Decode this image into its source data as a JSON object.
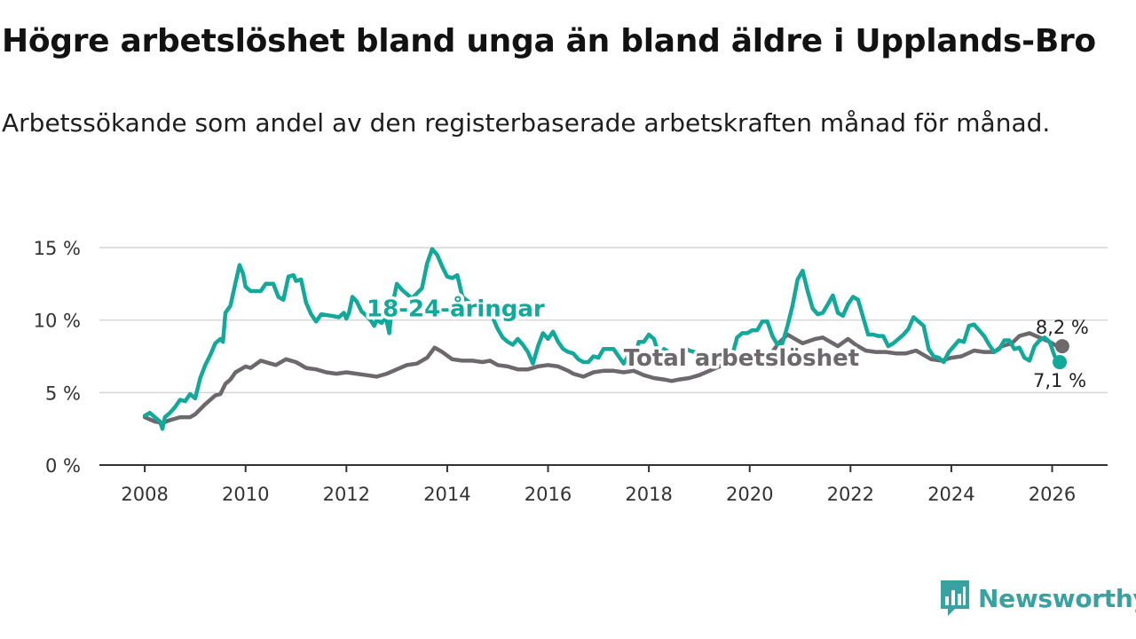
{
  "title": "Högre arbetslöshet bland unga än bland äldre i Upplands-Bro",
  "subtitle": "Arbetssökande som andel av den registerbaserade arbetskraften månad för månad.",
  "brand": {
    "name": "Newsworthy",
    "color": "#3aa1a1"
  },
  "chart_data": {
    "type": "line",
    "title": "Högre arbetslöshet bland unga än bland äldre i Upplands-Bro",
    "xlabel": "",
    "ylabel": "",
    "xlim": [
      2007.1,
      2027.1
    ],
    "ylim": [
      0,
      15
    ],
    "x_ticks": [
      2008,
      2010,
      2012,
      2014,
      2016,
      2018,
      2020,
      2022,
      2024,
      2026
    ],
    "x_tick_labels": [
      "2008",
      "2010",
      "2012",
      "2014",
      "2016",
      "2018",
      "2020",
      "2022",
      "2024",
      "2026"
    ],
    "y_ticks": [
      0,
      5,
      10,
      15
    ],
    "y_tick_labels": [
      "0 %",
      "5 %",
      "10 %",
      "15 %"
    ],
    "grid": true,
    "series": [
      {
        "name": "18-24-åringar",
        "label": "18-24-åringar",
        "color": "#12a89a",
        "end_label": "7,1 %",
        "label_at": [
          2012.4,
          10.8
        ],
        "points": [
          [
            2008.0,
            3.4
          ],
          [
            2008.1,
            3.6
          ],
          [
            2008.3,
            3.0
          ],
          [
            2008.35,
            2.5
          ],
          [
            2008.4,
            3.3
          ],
          [
            2008.5,
            3.6
          ],
          [
            2008.6,
            4.0
          ],
          [
            2008.7,
            4.5
          ],
          [
            2008.8,
            4.4
          ],
          [
            2008.9,
            4.9
          ],
          [
            2009.0,
            4.6
          ],
          [
            2009.1,
            6.0
          ],
          [
            2009.2,
            6.9
          ],
          [
            2009.3,
            7.6
          ],
          [
            2009.4,
            8.4
          ],
          [
            2009.5,
            8.7
          ],
          [
            2009.55,
            8.5
          ],
          [
            2009.6,
            10.5
          ],
          [
            2009.7,
            11.0
          ],
          [
            2009.8,
            12.6
          ],
          [
            2009.88,
            13.8
          ],
          [
            2009.95,
            13.2
          ],
          [
            2010.0,
            12.3
          ],
          [
            2010.1,
            12.0
          ],
          [
            2010.3,
            12.0
          ],
          [
            2010.4,
            12.5
          ],
          [
            2010.55,
            12.5
          ],
          [
            2010.65,
            11.6
          ],
          [
            2010.75,
            11.4
          ],
          [
            2010.85,
            13.0
          ],
          [
            2010.95,
            13.1
          ],
          [
            2011.0,
            12.7
          ],
          [
            2011.1,
            12.8
          ],
          [
            2011.2,
            11.2
          ],
          [
            2011.3,
            10.4
          ],
          [
            2011.4,
            9.9
          ],
          [
            2011.5,
            10.4
          ],
          [
            2011.7,
            10.3
          ],
          [
            2011.85,
            10.2
          ],
          [
            2011.95,
            10.5
          ],
          [
            2012.0,
            10.1
          ],
          [
            2012.05,
            10.5
          ],
          [
            2012.12,
            11.6
          ],
          [
            2012.2,
            11.3
          ],
          [
            2012.3,
            10.6
          ],
          [
            2012.4,
            10.3
          ],
          [
            2012.5,
            9.9
          ],
          [
            2012.55,
            9.6
          ],
          [
            2012.6,
            10.0
          ],
          [
            2012.7,
            9.8
          ],
          [
            2012.75,
            10.1
          ],
          [
            2012.8,
            9.9
          ],
          [
            2012.85,
            9.1
          ],
          [
            2012.9,
            10.8
          ],
          [
            2013.0,
            12.5
          ],
          [
            2013.1,
            12.1
          ],
          [
            2013.3,
            11.5
          ],
          [
            2013.5,
            12.2
          ],
          [
            2013.6,
            13.9
          ],
          [
            2013.7,
            14.9
          ],
          [
            2013.8,
            14.5
          ],
          [
            2013.9,
            13.7
          ],
          [
            2014.0,
            13.0
          ],
          [
            2014.1,
            12.9
          ],
          [
            2014.2,
            13.1
          ],
          [
            2014.3,
            11.6
          ],
          [
            2014.45,
            11.2
          ],
          [
            2014.6,
            10.8
          ],
          [
            2014.75,
            10.6
          ],
          [
            2014.9,
            10.2
          ],
          [
            2015.0,
            9.4
          ],
          [
            2015.1,
            8.8
          ],
          [
            2015.2,
            8.5
          ],
          [
            2015.3,
            8.3
          ],
          [
            2015.4,
            8.7
          ],
          [
            2015.5,
            8.3
          ],
          [
            2015.6,
            7.8
          ],
          [
            2015.7,
            7.0
          ],
          [
            2015.8,
            8.2
          ],
          [
            2015.9,
            9.1
          ],
          [
            2016.0,
            8.7
          ],
          [
            2016.1,
            9.2
          ],
          [
            2016.2,
            8.5
          ],
          [
            2016.3,
            8.0
          ],
          [
            2016.4,
            7.8
          ],
          [
            2016.5,
            7.7
          ],
          [
            2016.6,
            7.3
          ],
          [
            2016.7,
            7.1
          ],
          [
            2016.8,
            7.1
          ],
          [
            2016.9,
            7.5
          ],
          [
            2017.0,
            7.4
          ],
          [
            2017.1,
            8.0
          ],
          [
            2017.3,
            8.0
          ],
          [
            2017.4,
            7.5
          ],
          [
            2017.5,
            7.0
          ],
          [
            2017.6,
            7.6
          ],
          [
            2017.7,
            7.2
          ],
          [
            2017.8,
            8.5
          ],
          [
            2017.9,
            8.5
          ],
          [
            2018.0,
            9.0
          ],
          [
            2018.1,
            8.7
          ],
          [
            2018.2,
            7.6
          ],
          [
            2018.3,
            8.0
          ],
          [
            2018.4,
            7.8
          ],
          [
            2018.5,
            7.5
          ],
          [
            2018.6,
            7.7
          ],
          [
            2018.7,
            8.1
          ],
          [
            2018.8,
            7.9
          ],
          [
            2018.9,
            7.8
          ],
          [
            2019.0,
            7.6
          ],
          [
            2019.1,
            7.2
          ],
          [
            2019.2,
            7.5
          ],
          [
            2019.35,
            7.5
          ],
          [
            2019.5,
            7.2
          ],
          [
            2019.65,
            7.5
          ],
          [
            2019.75,
            8.8
          ],
          [
            2019.85,
            9.1
          ],
          [
            2019.95,
            9.1
          ],
          [
            2020.05,
            9.3
          ],
          [
            2020.15,
            9.3
          ],
          [
            2020.25,
            9.9
          ],
          [
            2020.35,
            9.9
          ],
          [
            2020.45,
            8.9
          ],
          [
            2020.55,
            8.3
          ],
          [
            2020.65,
            8.4
          ],
          [
            2020.75,
            9.6
          ],
          [
            2020.85,
            11.0
          ],
          [
            2020.95,
            12.8
          ],
          [
            2021.05,
            13.4
          ],
          [
            2021.15,
            12.0
          ],
          [
            2021.25,
            10.8
          ],
          [
            2021.35,
            10.4
          ],
          [
            2021.45,
            10.5
          ],
          [
            2021.55,
            11.1
          ],
          [
            2021.65,
            11.7
          ],
          [
            2021.75,
            10.5
          ],
          [
            2021.85,
            10.3
          ],
          [
            2021.95,
            11.1
          ],
          [
            2022.05,
            11.6
          ],
          [
            2022.15,
            11.4
          ],
          [
            2022.25,
            10.2
          ],
          [
            2022.35,
            9.0
          ],
          [
            2022.45,
            9.0
          ],
          [
            2022.55,
            8.9
          ],
          [
            2022.65,
            8.9
          ],
          [
            2022.75,
            8.2
          ],
          [
            2022.85,
            8.4
          ],
          [
            2022.95,
            8.7
          ],
          [
            2023.05,
            9.0
          ],
          [
            2023.15,
            9.4
          ],
          [
            2023.25,
            10.2
          ],
          [
            2023.35,
            9.9
          ],
          [
            2023.45,
            9.6
          ],
          [
            2023.55,
            8.0
          ],
          [
            2023.65,
            7.5
          ],
          [
            2023.75,
            7.4
          ],
          [
            2023.85,
            7.1
          ],
          [
            2023.95,
            7.8
          ],
          [
            2024.05,
            8.2
          ],
          [
            2024.15,
            8.6
          ],
          [
            2024.25,
            8.5
          ],
          [
            2024.35,
            9.6
          ],
          [
            2024.45,
            9.7
          ],
          [
            2024.55,
            9.3
          ],
          [
            2024.65,
            8.9
          ],
          [
            2024.75,
            8.3
          ],
          [
            2024.85,
            7.8
          ],
          [
            2024.95,
            8.0
          ],
          [
            2025.05,
            8.6
          ],
          [
            2025.15,
            8.6
          ],
          [
            2025.25,
            8.0
          ],
          [
            2025.35,
            8.1
          ],
          [
            2025.45,
            7.4
          ],
          [
            2025.55,
            7.2
          ],
          [
            2025.65,
            8.2
          ],
          [
            2025.75,
            8.6
          ],
          [
            2025.85,
            8.8
          ],
          [
            2025.95,
            8.5
          ],
          [
            2026.05,
            7.5
          ],
          [
            2026.15,
            7.1
          ]
        ]
      },
      {
        "name": "Total arbetslöshet",
        "label": "Total arbetslöshet",
        "color": "#6c686c",
        "end_label": "8,2 %",
        "label_at": [
          2017.5,
          7.4
        ],
        "points": [
          [
            2008.0,
            3.3
          ],
          [
            2008.2,
            3.0
          ],
          [
            2008.35,
            2.9
          ],
          [
            2008.5,
            3.1
          ],
          [
            2008.7,
            3.3
          ],
          [
            2008.9,
            3.3
          ],
          [
            2009.0,
            3.5
          ],
          [
            2009.2,
            4.2
          ],
          [
            2009.4,
            4.8
          ],
          [
            2009.5,
            4.9
          ],
          [
            2009.6,
            5.6
          ],
          [
            2009.7,
            5.9
          ],
          [
            2009.8,
            6.4
          ],
          [
            2010.0,
            6.8
          ],
          [
            2010.1,
            6.7
          ],
          [
            2010.3,
            7.2
          ],
          [
            2010.5,
            7.0
          ],
          [
            2010.6,
            6.9
          ],
          [
            2010.8,
            7.3
          ],
          [
            2011.0,
            7.1
          ],
          [
            2011.2,
            6.7
          ],
          [
            2011.4,
            6.6
          ],
          [
            2011.6,
            6.4
          ],
          [
            2011.8,
            6.3
          ],
          [
            2012.0,
            6.4
          ],
          [
            2012.2,
            6.3
          ],
          [
            2012.4,
            6.2
          ],
          [
            2012.6,
            6.1
          ],
          [
            2012.8,
            6.3
          ],
          [
            2013.0,
            6.6
          ],
          [
            2013.2,
            6.9
          ],
          [
            2013.4,
            7.0
          ],
          [
            2013.6,
            7.4
          ],
          [
            2013.75,
            8.1
          ],
          [
            2013.9,
            7.8
          ],
          [
            2014.1,
            7.3
          ],
          [
            2014.3,
            7.2
          ],
          [
            2014.5,
            7.2
          ],
          [
            2014.7,
            7.1
          ],
          [
            2014.85,
            7.2
          ],
          [
            2015.0,
            6.9
          ],
          [
            2015.2,
            6.8
          ],
          [
            2015.4,
            6.6
          ],
          [
            2015.6,
            6.6
          ],
          [
            2015.8,
            6.8
          ],
          [
            2016.0,
            6.9
          ],
          [
            2016.2,
            6.8
          ],
          [
            2016.4,
            6.5
          ],
          [
            2016.5,
            6.3
          ],
          [
            2016.7,
            6.1
          ],
          [
            2016.9,
            6.4
          ],
          [
            2017.1,
            6.5
          ],
          [
            2017.3,
            6.5
          ],
          [
            2017.5,
            6.4
          ],
          [
            2017.7,
            6.5
          ],
          [
            2017.9,
            6.2
          ],
          [
            2018.1,
            6.0
          ],
          [
            2018.3,
            5.9
          ],
          [
            2018.45,
            5.8
          ],
          [
            2018.6,
            5.9
          ],
          [
            2018.8,
            6.0
          ],
          [
            2019.0,
            6.2
          ],
          [
            2019.2,
            6.5
          ],
          [
            2019.4,
            6.8
          ],
          [
            2019.6,
            7.1
          ],
          [
            2019.8,
            7.4
          ],
          [
            2020.0,
            7.3
          ],
          [
            2020.2,
            7.3
          ],
          [
            2020.4,
            7.6
          ],
          [
            2020.6,
            8.5
          ],
          [
            2020.75,
            9.0
          ],
          [
            2020.9,
            8.7
          ],
          [
            2021.05,
            8.4
          ],
          [
            2021.3,
            8.7
          ],
          [
            2021.45,
            8.8
          ],
          [
            2021.6,
            8.5
          ],
          [
            2021.75,
            8.2
          ],
          [
            2021.95,
            8.7
          ],
          [
            2022.1,
            8.3
          ],
          [
            2022.3,
            7.9
          ],
          [
            2022.5,
            7.8
          ],
          [
            2022.7,
            7.8
          ],
          [
            2022.9,
            7.7
          ],
          [
            2023.1,
            7.7
          ],
          [
            2023.3,
            7.9
          ],
          [
            2023.45,
            7.6
          ],
          [
            2023.6,
            7.3
          ],
          [
            2023.8,
            7.2
          ],
          [
            2024.0,
            7.4
          ],
          [
            2024.2,
            7.5
          ],
          [
            2024.45,
            7.9
          ],
          [
            2024.65,
            7.8
          ],
          [
            2024.85,
            7.8
          ],
          [
            2025.0,
            8.2
          ],
          [
            2025.2,
            8.4
          ],
          [
            2025.35,
            8.9
          ],
          [
            2025.55,
            9.1
          ],
          [
            2025.75,
            8.8
          ],
          [
            2025.95,
            8.5
          ],
          [
            2026.1,
            8.2
          ],
          [
            2026.2,
            8.2
          ]
        ]
      }
    ]
  }
}
